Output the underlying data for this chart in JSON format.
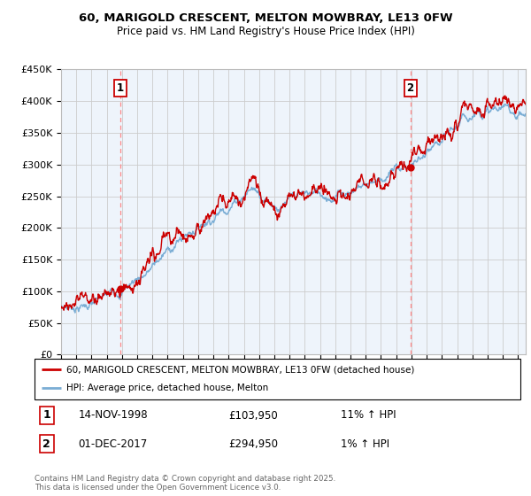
{
  "title_line1": "60, MARIGOLD CRESCENT, MELTON MOWBRAY, LE13 0FW",
  "title_line2": "Price paid vs. HM Land Registry's House Price Index (HPI)",
  "ylabel_ticks": [
    "£0",
    "£50K",
    "£100K",
    "£150K",
    "£200K",
    "£250K",
    "£300K",
    "£350K",
    "£400K",
    "£450K"
  ],
  "ylabel_values": [
    0,
    50000,
    100000,
    150000,
    200000,
    250000,
    300000,
    350000,
    400000,
    450000
  ],
  "ylim": [
    0,
    450000
  ],
  "xlim_start": 1995.0,
  "xlim_end": 2025.5,
  "sale1_date": 1998.87,
  "sale1_price": 103950,
  "sale2_date": 2017.92,
  "sale2_price": 294950,
  "red_color": "#cc0000",
  "blue_color": "#7aadd4",
  "fill_color": "#ddeeff",
  "vline_color": "#ff8888",
  "grid_color": "#cccccc",
  "background_color": "#ffffff",
  "chart_bg_color": "#eef4fb",
  "legend_entry1": "60, MARIGOLD CRESCENT, MELTON MOWBRAY, LE13 0FW (detached house)",
  "legend_entry2": "HPI: Average price, detached house, Melton",
  "note1_num": "1",
  "note1_date": "14-NOV-1998",
  "note1_price": "£103,950",
  "note1_hpi": "11% ↑ HPI",
  "note2_num": "2",
  "note2_date": "01-DEC-2017",
  "note2_price": "£294,950",
  "note2_hpi": "1% ↑ HPI",
  "footer": "Contains HM Land Registry data © Crown copyright and database right 2025.\nThis data is licensed under the Open Government Licence v3.0."
}
